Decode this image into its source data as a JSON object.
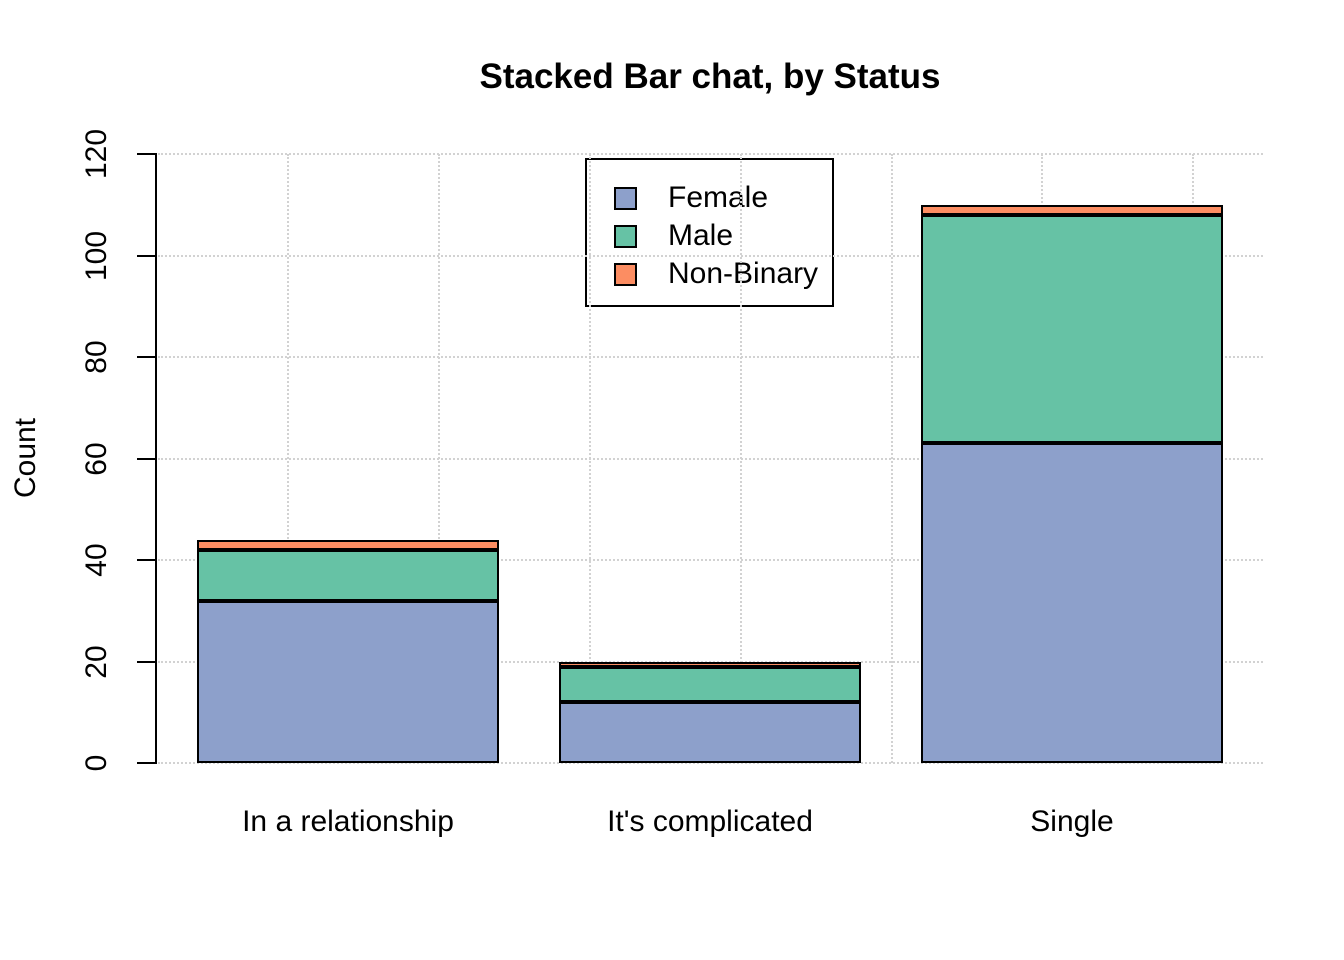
{
  "chart_data": {
    "type": "bar",
    "stacked": true,
    "title": "Stacked Bar chat, by Status",
    "xlabel": "",
    "ylabel": "Count",
    "categories": [
      "In a relationship",
      "It's complicated",
      "Single"
    ],
    "series": [
      {
        "name": "Female",
        "color": "#8DA0CB",
        "values": [
          32,
          12,
          63
        ]
      },
      {
        "name": "Male",
        "color": "#66C2A5",
        "values": [
          10,
          7,
          45
        ]
      },
      {
        "name": "Non-Binary",
        "color": "#FC8D62",
        "values": [
          2,
          1,
          2
        ]
      }
    ],
    "totals": [
      44,
      20,
      110
    ],
    "ylim": [
      0,
      120
    ],
    "yticks": [
      "0",
      "20",
      "40",
      "60",
      "80",
      "100",
      "120"
    ],
    "grid": true,
    "grid_style": "dotted",
    "legend_position": "top-center-inside",
    "bar_border_color": "#000000"
  }
}
